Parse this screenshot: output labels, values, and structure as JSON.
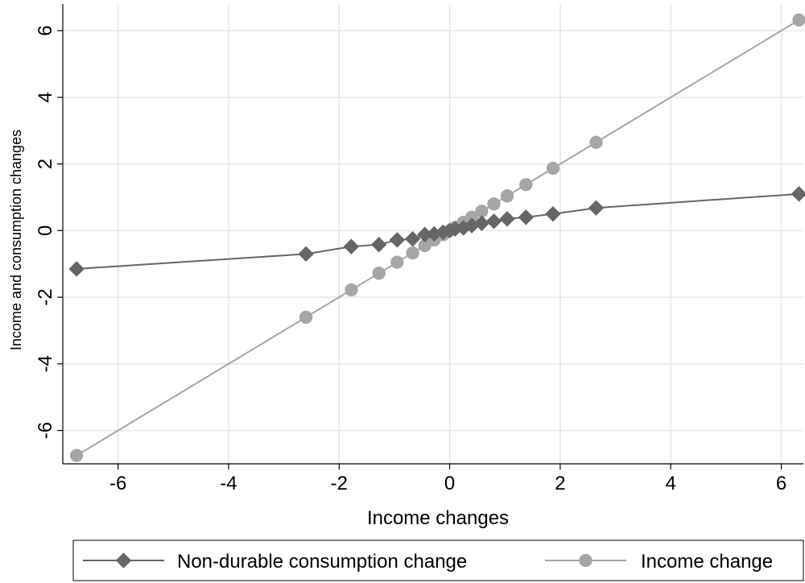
{
  "chart_data": {
    "type": "line",
    "title": "",
    "xlabel": "Income changes",
    "ylabel": "Income and consumption changes",
    "xlim": [
      -7.0,
      6.4
    ],
    "ylim": [
      -7.0,
      6.8
    ],
    "xticks": [
      -6,
      -4,
      -2,
      0,
      2,
      4,
      6
    ],
    "yticks": [
      -6,
      -4,
      -2,
      0,
      2,
      4,
      6
    ],
    "grid": true,
    "legend_position": "bottom",
    "series": [
      {
        "name": "Non-durable consumption change",
        "marker": "diamond",
        "color": "#666666",
        "points": [
          [
            -6.75,
            -1.15
          ],
          [
            -2.6,
            -0.7
          ],
          [
            -1.78,
            -0.48
          ],
          [
            -1.28,
            -0.42
          ],
          [
            -0.95,
            -0.28
          ],
          [
            -0.67,
            -0.25
          ],
          [
            -0.45,
            -0.12
          ],
          [
            -0.28,
            -0.1
          ],
          [
            -0.12,
            -0.05
          ],
          [
            0.0,
            0.0
          ],
          [
            0.1,
            0.05
          ],
          [
            0.25,
            0.08
          ],
          [
            0.4,
            0.15
          ],
          [
            0.58,
            0.22
          ],
          [
            0.8,
            0.28
          ],
          [
            1.04,
            0.35
          ],
          [
            1.38,
            0.4
          ],
          [
            1.87,
            0.5
          ],
          [
            2.65,
            0.68
          ],
          [
            6.32,
            1.1
          ]
        ]
      },
      {
        "name": "Income change",
        "marker": "circle",
        "color": "#a6a6a6",
        "points": [
          [
            -6.75,
            -6.75
          ],
          [
            -2.6,
            -2.6
          ],
          [
            -1.78,
            -1.78
          ],
          [
            -1.28,
            -1.28
          ],
          [
            -0.95,
            -0.95
          ],
          [
            -0.67,
            -0.67
          ],
          [
            -0.45,
            -0.45
          ],
          [
            -0.28,
            -0.28
          ],
          [
            -0.12,
            -0.12
          ],
          [
            0.0,
            0.0
          ],
          [
            0.1,
            0.1
          ],
          [
            0.25,
            0.25
          ],
          [
            0.4,
            0.4
          ],
          [
            0.58,
            0.58
          ],
          [
            0.8,
            0.8
          ],
          [
            1.04,
            1.04
          ],
          [
            1.38,
            1.38
          ],
          [
            1.87,
            1.87
          ],
          [
            2.65,
            2.65
          ],
          [
            6.32,
            6.32
          ]
        ]
      }
    ]
  }
}
